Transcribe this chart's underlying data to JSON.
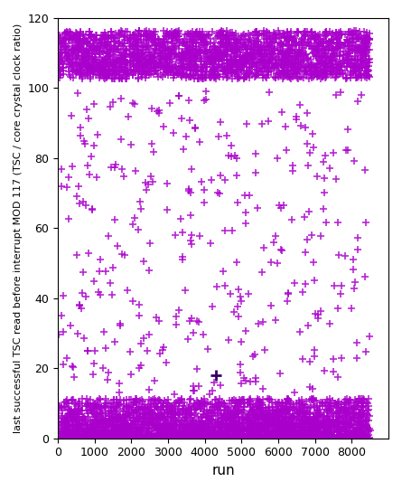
{
  "title": "",
  "xlabel": "run",
  "ylabel": "last successful TSC read before interrupt MOD 117 (TSC / core crystal clock ratio)",
  "xlim": [
    0,
    9000
  ],
  "ylim": [
    0,
    120
  ],
  "xticks": [
    0,
    1000,
    2000,
    3000,
    4000,
    5000,
    6000,
    7000,
    8000
  ],
  "yticks": [
    0,
    20,
    40,
    60,
    80,
    100,
    120
  ],
  "marker": "+",
  "marker_color": "#AA00CC",
  "marker_size": 6,
  "marker_linewidth": 1.2,
  "dark_marker_color": "#330066",
  "n_cluster_low": 3500,
  "n_cluster_high": 2500,
  "n_scatter": 350,
  "figsize": [
    4.45,
    5.43
  ],
  "dpi": 100,
  "low_bands": [
    0,
    1,
    2,
    3,
    4,
    5,
    6,
    7,
    8,
    9,
    10,
    11
  ],
  "low_band_weights": [
    0.25,
    0.12,
    0.1,
    0.09,
    0.08,
    0.07,
    0.06,
    0.06,
    0.05,
    0.05,
    0.04,
    0.03
  ],
  "high_bands": [
    103,
    104,
    105,
    106,
    107,
    108,
    109,
    110,
    111,
    112,
    113,
    114,
    115,
    116
  ],
  "high_band_weights": [
    0.05,
    0.07,
    0.09,
    0.09,
    0.09,
    0.09,
    0.08,
    0.08,
    0.08,
    0.07,
    0.07,
    0.07,
    0.07,
    0.05
  ]
}
